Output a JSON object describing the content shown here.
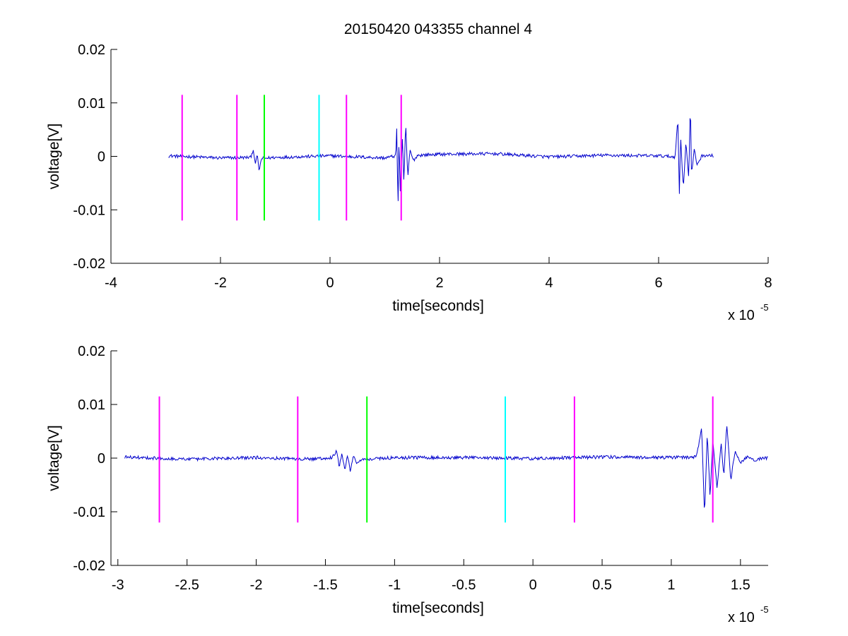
{
  "figure": {
    "title": "20150420 043355 channel 4"
  },
  "colors": {
    "signal": "#0000cc",
    "magenta": "#ff00ff",
    "green": "#00ff00",
    "cyan": "#00ffff",
    "axes": "#000000",
    "background": "#ffffff"
  },
  "chart_data": [
    {
      "type": "line",
      "xlabel": "time[seconds]",
      "ylabel": "voltage[V]",
      "x_multiplier": "x 10",
      "x_exponent": "-5",
      "xlim": [
        -4e-05,
        8e-05
      ],
      "ylim": [
        -0.02,
        0.02
      ],
      "xticks": [
        -4e-05,
        -2e-05,
        0,
        2e-05,
        4e-05,
        6e-05,
        8e-05
      ],
      "xtick_labels": [
        "-4",
        "-2",
        "0",
        "2",
        "4",
        "6",
        "8"
      ],
      "yticks": [
        -0.02,
        -0.01,
        0,
        0.01,
        0.02
      ],
      "ytick_labels": [
        "-0.02",
        "-0.01",
        "0",
        "0.01",
        "0.02"
      ],
      "grid": false,
      "series": [
        {
          "color": "#0000cc",
          "x": [
            -2.95e-05,
            -2e-05,
            -1.45e-05,
            -1.4e-05,
            -1.36e-05,
            -1.33e-05,
            -1.3e-05,
            -1.25e-05,
            -1e-05,
            0,
            1e-05,
            1.2e-05,
            1.22e-05,
            1.24e-05,
            1.26e-05,
            1.28e-05,
            1.32e-05,
            1.35e-05,
            1.38e-05,
            1.42e-05,
            1.46e-05,
            1.52e-05,
            1.6e-05,
            2e-05,
            3e-05,
            4e-05,
            5e-05,
            6e-05,
            6.3e-05,
            6.35e-05,
            6.38e-05,
            6.4e-05,
            6.45e-05,
            6.5e-05,
            6.55e-05,
            6.58e-05,
            6.6e-05,
            6.65e-05,
            6.7e-05,
            6.8e-05,
            7e-05
          ],
          "y": [
            0.0001,
            -0.0003,
            -0.0002,
            0.0013,
            -0.0018,
            0.0008,
            -0.0028,
            -0.0004,
            -0.0002,
            0.0001,
            -0.0003,
            0.0001,
            0.0055,
            -0.0108,
            0.0045,
            -0.007,
            0.0035,
            -0.0055,
            0.0065,
            -0.004,
            0.0012,
            -0.0008,
            0.0002,
            0.0004,
            0.0005,
            -0.0001,
            0.0002,
            0.0001,
            -0.0001,
            0.0072,
            -0.0075,
            0.004,
            -0.006,
            0.0028,
            -0.0042,
            0.0105,
            -0.0035,
            0.0012,
            -0.0015,
            0.0002,
            0.0001
          ]
        }
      ],
      "markers": [
        {
          "x": -2.7e-05,
          "color": "#ff00ff",
          "ymin": -0.012,
          "ymax": 0.0115
        },
        {
          "x": -1.7e-05,
          "color": "#ff00ff",
          "ymin": -0.012,
          "ymax": 0.0115
        },
        {
          "x": -1.2e-05,
          "color": "#00ff00",
          "ymin": -0.012,
          "ymax": 0.0115
        },
        {
          "x": -2e-06,
          "color": "#00ffff",
          "ymin": -0.012,
          "ymax": 0.0115
        },
        {
          "x": 3e-06,
          "color": "#ff00ff",
          "ymin": -0.012,
          "ymax": 0.0115
        },
        {
          "x": 1.3e-05,
          "color": "#ff00ff",
          "ymin": -0.012,
          "ymax": 0.0115
        }
      ]
    },
    {
      "type": "line",
      "xlabel": "time[seconds]",
      "ylabel": "voltage[V]",
      "x_multiplier": "x 10",
      "x_exponent": "-5",
      "xlim": [
        -3.05e-05,
        1.7e-05
      ],
      "ylim": [
        -0.02,
        0.02
      ],
      "xticks": [
        -3e-05,
        -2.5e-05,
        -2e-05,
        -1.5e-05,
        -1e-05,
        -5e-06,
        0,
        5e-06,
        1e-05,
        1.5e-05
      ],
      "xtick_labels": [
        "-3",
        "-2.5",
        "-2",
        "-1.5",
        "-1",
        "-0.5",
        "0",
        "0.5",
        "1",
        "1.5"
      ],
      "yticks": [
        -0.02,
        -0.01,
        0,
        0.01,
        0.02
      ],
      "ytick_labels": [
        "-0.02",
        "-0.01",
        "0",
        "0.01",
        "0.02"
      ],
      "grid": false,
      "series": [
        {
          "color": "#0000cc",
          "x": [
            -2.95e-05,
            -2.5e-05,
            -2e-05,
            -1.6e-05,
            -1.45e-05,
            -1.42e-05,
            -1.4e-05,
            -1.38e-05,
            -1.36e-05,
            -1.34e-05,
            -1.32e-05,
            -1.3e-05,
            -1.27e-05,
            -1.22e-05,
            -1e-05,
            -5e-06,
            0,
            5e-06,
            1e-05,
            1.18e-05,
            1.22e-05,
            1.24e-05,
            1.26e-05,
            1.28e-05,
            1.3e-05,
            1.33e-05,
            1.36e-05,
            1.38e-05,
            1.4e-05,
            1.43e-05,
            1.46e-05,
            1.5e-05,
            1.55e-05,
            1.6e-05,
            1.7e-05
          ],
          "y": [
            0.0002,
            -0.0002,
            0.0001,
            -0.0002,
            0.0001,
            0.0014,
            -0.0016,
            0.0009,
            -0.0023,
            0.0006,
            -0.0027,
            0.0003,
            -0.0009,
            -0.0002,
            0.0001,
            0.0001,
            -0.0001,
            0.0002,
            0.0001,
            0.0002,
            0.0055,
            -0.0108,
            0.0048,
            -0.0072,
            0.0035,
            -0.0055,
            0.0028,
            -0.0035,
            0.0065,
            -0.004,
            0.0013,
            -0.0008,
            0.0002,
            -0.0003,
            0.0001
          ]
        }
      ],
      "markers": [
        {
          "x": -2.7e-05,
          "color": "#ff00ff",
          "ymin": -0.012,
          "ymax": 0.0115
        },
        {
          "x": -1.7e-05,
          "color": "#ff00ff",
          "ymin": -0.012,
          "ymax": 0.0115
        },
        {
          "x": -1.2e-05,
          "color": "#00ff00",
          "ymin": -0.012,
          "ymax": 0.0115
        },
        {
          "x": -2e-06,
          "color": "#00ffff",
          "ymin": -0.012,
          "ymax": 0.0115
        },
        {
          "x": 3e-06,
          "color": "#ff00ff",
          "ymin": -0.012,
          "ymax": 0.0115
        },
        {
          "x": 1.3e-05,
          "color": "#ff00ff",
          "ymin": -0.012,
          "ymax": 0.0115
        }
      ]
    }
  ]
}
